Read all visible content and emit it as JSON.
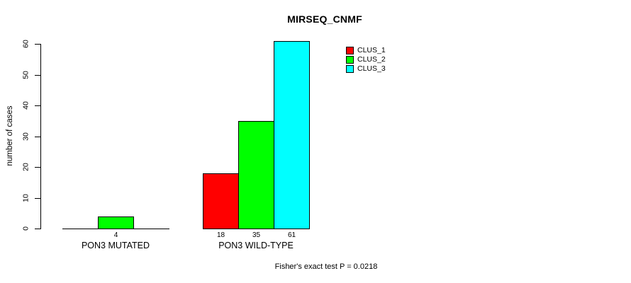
{
  "chart_data": {
    "type": "bar",
    "title": "MIRSEQ_CNMF",
    "ylabel": "number of cases",
    "xlabel": "",
    "ylim": [
      0,
      61
    ],
    "y_ticks": [
      0,
      10,
      20,
      30,
      40,
      50,
      60
    ],
    "grid": false,
    "categories": [
      "PON3 MUTATED",
      "PON3 WILD-TYPE"
    ],
    "series": [
      {
        "name": "CLUS_1",
        "color": "#ff0000",
        "values": [
          0,
          18
        ]
      },
      {
        "name": "CLUS_2",
        "color": "#00ff00",
        "values": [
          4,
          35
        ]
      },
      {
        "name": "CLUS_3",
        "color": "#00ffff",
        "values": [
          0,
          61
        ]
      }
    ],
    "show_bar_values": true,
    "legend_position": "top-right",
    "annotation": "Fisher's exact test P = 0.0218"
  },
  "colors": {
    "background": "#ffffff",
    "axis": "#000000",
    "text": "#000000",
    "bar_border": "#000000"
  }
}
